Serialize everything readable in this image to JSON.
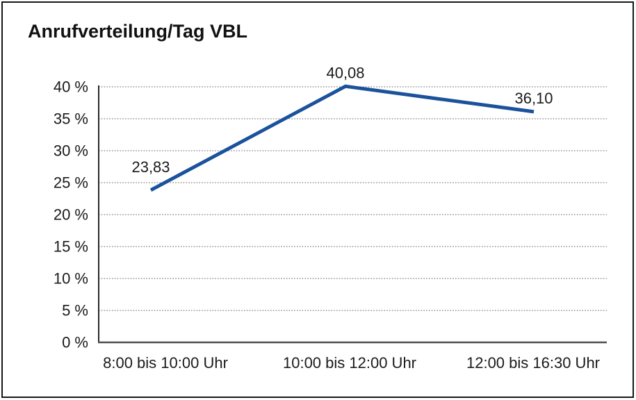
{
  "window": {
    "background_color": "#ffffff",
    "border_color": "#161616"
  },
  "chart_data": {
    "type": "line",
    "title": "Anrufverteilung/Tag VBL",
    "categories": [
      "8:00 bis 10:00 Uhr",
      "10:00 bis 12:00 Uhr",
      "12:00 bis 16:30 Uhr"
    ],
    "values": [
      23.83,
      40.08,
      36.1
    ],
    "value_labels": [
      "23,83",
      "40,08",
      "36,10"
    ],
    "xlabel": "",
    "ylabel": "",
    "ylim": [
      0,
      40
    ],
    "ytick_step": 5,
    "ytick_labels": [
      "0 %",
      "5 %",
      "10 %",
      "15 %",
      "20 %",
      "25 %",
      "30 %",
      "35 %",
      "40 %"
    ],
    "grid": "horizontal-dotted",
    "legend": "none",
    "series_color": "#1b529c",
    "gridline_color": "#808080",
    "axis_color": "#262626",
    "baseline_color": "#4d4d4d",
    "text_color": "#1a1a1a"
  }
}
